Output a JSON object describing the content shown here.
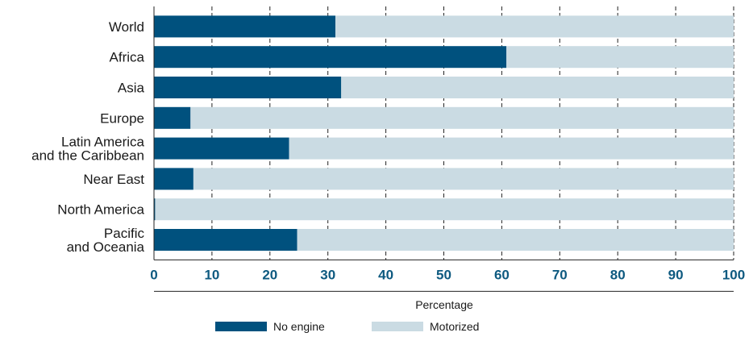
{
  "chart_data": {
    "type": "bar",
    "orientation": "horizontal",
    "stacked": true,
    "categories": [
      [
        "World"
      ],
      [
        "Africa"
      ],
      [
        "Asia"
      ],
      [
        "Europe"
      ],
      [
        "Latin America",
        "and the Caribbean"
      ],
      [
        "Near East"
      ],
      [
        "North America"
      ],
      [
        "Pacific",
        "and Oceania"
      ]
    ],
    "series": [
      {
        "name": "No engine",
        "color": "#00517e",
        "values": [
          31.3,
          60.8,
          32.3,
          6.3,
          23.3,
          6.8,
          0.2,
          24.7
        ]
      },
      {
        "name": "Motorized",
        "color": "#cadbe3",
        "values": [
          68.7,
          39.2,
          67.7,
          93.7,
          76.7,
          93.2,
          99.8,
          75.3
        ]
      }
    ],
    "xlim": [
      0,
      100
    ],
    "xticks": [
      0,
      10,
      20,
      30,
      40,
      50,
      60,
      70,
      80,
      90,
      100
    ],
    "xlabel": "Percentage",
    "title": "",
    "grid": "vertical dashed at ticks",
    "legend_position": "bottom"
  }
}
